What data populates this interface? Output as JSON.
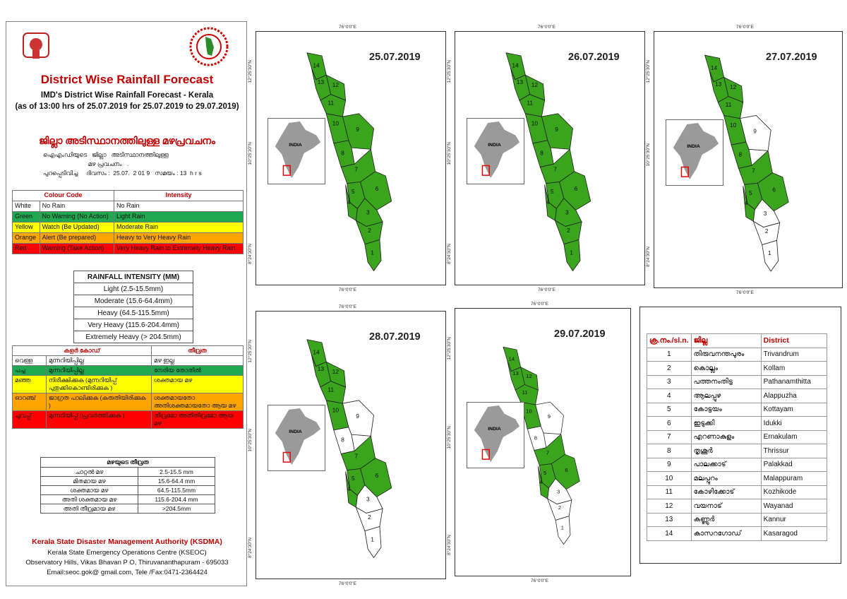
{
  "header": {
    "title": "District Wise Rainfall Forecast",
    "subtitle1": "IMD's District Wise Rainfall Forecast - Kerala",
    "subtitle2": "(as of 13:00 hrs of 25.07.2019  for 25.07.2019 to 29.07.2019)",
    "ml_title": "ജില്ലാ അടിസ്ഥാനത്തിലുള്ള  മഴപ്രവചനം",
    "ml_line1": "ഐഎംഡിയുടെ   ജില്ലാ   അടിസ്ഥാനത്തിലുള്ള",
    "ml_line2": "                           മഴ പ്രവചനം   .",
    "ml_line3": "പുറപ്പെടിവിച്ച     ദിവസം :  25.07.  2 01 9   സമയം : 13  h r s"
  },
  "colour_code": {
    "headers": [
      "Colour Code",
      "Intensity"
    ],
    "rows": [
      {
        "colour": "White",
        "meaning": "No Rain",
        "intensity": "No Rain",
        "cls": "r-white"
      },
      {
        "colour": "Green",
        "meaning": "No Warning (No Action)",
        "intensity": "Light Rain",
        "cls": "r-green"
      },
      {
        "colour": "Yellow",
        "meaning": "Watch (Be Updated)",
        "intensity": "Moderate Rain",
        "cls": "r-yellow"
      },
      {
        "colour": "Orange",
        "meaning": "Alert (Be prepared)",
        "intensity": "Heavy to Very Heavy Rain",
        "cls": "r-orange"
      },
      {
        "colour": "Red",
        "meaning": "Warning (Take Action)",
        "intensity": "Very Heavy Rain to Extremely Heavy Rain",
        "cls": "r-red"
      }
    ]
  },
  "rainfall_intensity": {
    "title": "RAINFALL INTENSITY (MM)",
    "rows": [
      "Light (2.5-15.5mm)",
      "Moderate (15.6-64.4mm)",
      "Heavy (64.5-115.5mm)",
      "Very Heavy (115.6-204.4mm)",
      "Extremely Heavy (> 204.5mm)"
    ]
  },
  "ml_colour_code": {
    "headers": [
      "കളർ കോഡ്",
      "തീവ്രത"
    ],
    "rows": [
      {
        "colour": "വെള്ള",
        "meaning": "മുന്നറിയിപ്പില്ല",
        "intensity": "മഴ ഇല്ല",
        "cls": "r-white"
      },
      {
        "colour": "പച്ച",
        "meaning": "മുന്നറിയിപ്പില്ല",
        "intensity": "നേരിയ തോതിൽ",
        "cls": "r-green"
      },
      {
        "colour": "മഞ്ഞ",
        "meaning": "നിരീക്ഷിക്കുക (മുന്നറിയിപ്പ് പുതുക്കികൊണ്ടിരിക്കുക )",
        "intensity": "ശക്തമായ മഴ",
        "cls": "r-yellow"
      },
      {
        "colour": "ഓറഞ്ച്",
        "meaning": "ജാഗ്രത പാലിക്കുക (കരുതിയിരിക്കുക )",
        "intensity": "ശക്തമായതോ അതിശക്തമായതോ ആയ മഴ",
        "cls": "r-orange"
      },
      {
        "colour": "ചുവപ്പ്",
        "meaning": "മുന്നറിയിപ്പ് (പ്രവർത്തിക്കുക )",
        "intensity": "തീവ്രമോ അതിതീവ്രമോ ആയ മഴ",
        "cls": "r-red"
      }
    ]
  },
  "ml_rainfall_intensity": {
    "title": "മഴയുടെ തീവ്രത",
    "rows": [
      {
        "label": "ചാറ്റൽ മഴ",
        "range": "2.5-15.5 mm"
      },
      {
        "label": "മിതമായ മഴ",
        "range": "15.6-64.4 mm"
      },
      {
        "label": "ശക്തമായ മഴ",
        "range": "64.5-115.5mm"
      },
      {
        "label": "അതി ശക്തമായ മഴ",
        "range": "115.6-204.4 mm"
      },
      {
        "label": "അതി തീവ്രമായ മഴ",
        "range": ">204.5mm"
      }
    ]
  },
  "footer": {
    "org": "Kerala State Disaster Management Authority (KSDMA)",
    "line1": "Kerala State Emergency Operations Centre (KSEOC)",
    "line2": "Observatory Hills, Vikas Bhavan P O, Thiruvananthapuram - 695033",
    "line3": "Email:seoc.gok@ gmail.com, Tele /Fax:0471-2364424"
  },
  "map_labels": {
    "lon": "76°0'0\"E",
    "lat1": "12°25'30\"N",
    "lat2": "10°25'30\"N",
    "lat3": "8°24'30\"N",
    "india": "INDIA"
  },
  "colors": {
    "green": "#3aa51c",
    "white": "#ffffff"
  },
  "maps": [
    {
      "date": "25.07.2019",
      "white_districts": []
    },
    {
      "date": "26.07.2019",
      "white_districts": []
    },
    {
      "date": "27.07.2019",
      "white_districts": [
        "9",
        "3",
        "2",
        "1"
      ]
    },
    {
      "date": "28.07.2019",
      "white_districts": [
        "9",
        "8",
        "3",
        "2",
        "1"
      ]
    },
    {
      "date": "29.07.2019",
      "white_districts": [
        "9",
        "8",
        "3",
        "2",
        "1"
      ]
    }
  ],
  "district_table": {
    "headers": [
      "ക്ര.നം./sl.n.",
      "ജില്ല",
      "District"
    ],
    "rows": [
      [
        "1",
        "തിരുവനന്തപുരം",
        "Trivandrum"
      ],
      [
        "2",
        "കൊല്ലം",
        "Kollam"
      ],
      [
        "3",
        "പത്തനംതിട്ട",
        "Pathanamthitta"
      ],
      [
        "4",
        "ആലപ്പുഴ",
        "Alappuzha"
      ],
      [
        "5",
        "കോട്ടയം",
        "Kottayam"
      ],
      [
        "6",
        "ഇടുക്കി",
        "Idukki"
      ],
      [
        "7",
        "എറണാകുളം",
        "Ernakulam"
      ],
      [
        "8",
        "തൃശൂർ",
        "Thrissur"
      ],
      [
        "9",
        "പാലക്കാട്",
        "Palakkad"
      ],
      [
        "10",
        "മലപ്പുറം",
        "Malappuram"
      ],
      [
        "11",
        "കോഴിക്കോട്",
        "Kozhikode"
      ],
      [
        "12",
        "വയനാട്",
        "Wayanad"
      ],
      [
        "13",
        "കണ്ണൂർ",
        "Kannur"
      ],
      [
        "14",
        "കാസറഗോഡ്",
        "Kasaragod"
      ]
    ]
  }
}
